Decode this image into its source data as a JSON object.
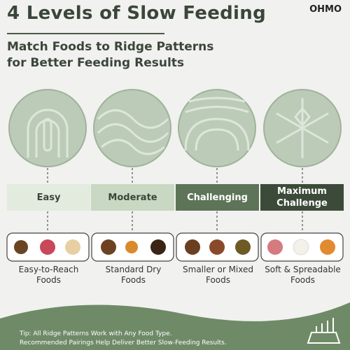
{
  "header": {
    "title": "4 Levels of Slow Feeding",
    "brand": "OHMO",
    "subtitle": [
      "Match Foods to Ridge Patterns",
      "for Better Feeding Results"
    ]
  },
  "levels": [
    {
      "label": "Easy",
      "food": "Easy-to-Reach Foods"
    },
    {
      "label": "Moderate",
      "food": "Standard Dry Foods"
    },
    {
      "label": "Challenging",
      "food": "Smaller or Mixed Foods"
    },
    {
      "label": "Maximum Challenge",
      "food": "Soft & Spreadable Foods"
    }
  ],
  "tip": [
    "Tip: All Ridge Patterns Work with Any Food Type.",
    "Recommended Pairings Help Deliver Better Slow-Feeding Results."
  ]
}
